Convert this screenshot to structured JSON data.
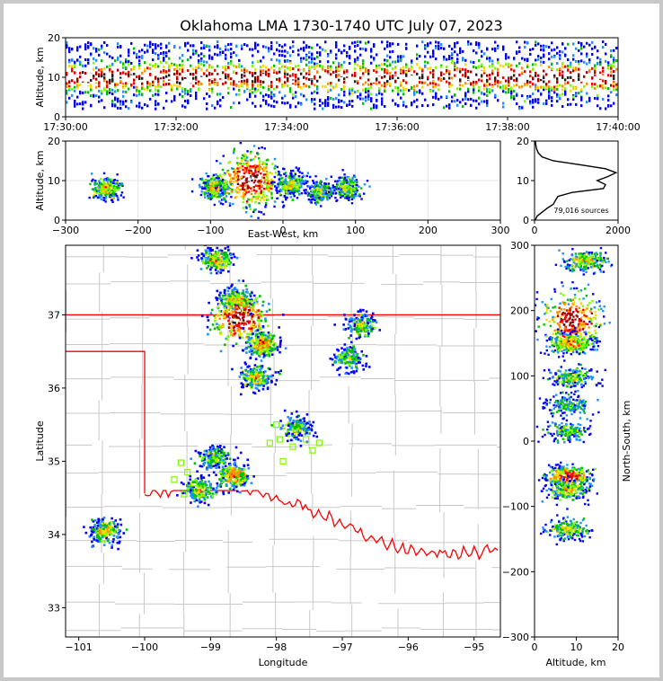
{
  "title": "Oklahoma LMA 1730-1740 UTC July 07, 2023",
  "source_count_label": "79,016 sources",
  "colors": {
    "border_red": "#ff0000",
    "county_lines": "#c8c8c8",
    "station_marker": "#7cfc00",
    "palette": [
      "#0000ff",
      "#1e90ff",
      "#00c000",
      "#7cfc00",
      "#ffd700",
      "#ff8c00",
      "#ff0000",
      "#b00000",
      "#ffffff",
      "#202020"
    ]
  },
  "chart_data": [
    {
      "panel": "altitude-time",
      "type": "heatmap",
      "ylabel": "Altitude, km",
      "xlim": [
        "17:30:00",
        "17:40:00"
      ],
      "ylim": [
        0,
        20
      ],
      "xticks": [
        "17:30:00",
        "17:32:00",
        "17:34:00",
        "17:36:00",
        "17:38:00",
        "17:40:00"
      ],
      "yticks": [
        "0",
        "10",
        "20"
      ]
    },
    {
      "panel": "altitude-eastwest",
      "type": "heatmap",
      "xlabel": "East-West, km",
      "ylabel": "Altitude, km",
      "xlim": [
        -300,
        300
      ],
      "ylim": [
        0,
        20
      ],
      "xticks": [
        "−300",
        "−200",
        "−100",
        "0",
        "100",
        "200",
        "300"
      ],
      "yticks": [
        "0",
        "10",
        "20"
      ],
      "clusters": [
        {
          "x": -245,
          "alt": 8,
          "density": 0.55
        },
        {
          "x": -95,
          "alt": 8,
          "density": 0.6
        },
        {
          "x": -45,
          "alt": 10,
          "density": 1.0
        },
        {
          "x": 12,
          "alt": 9,
          "density": 0.55
        },
        {
          "x": 52,
          "alt": 7,
          "density": 0.4
        },
        {
          "x": 90,
          "alt": 8,
          "density": 0.45
        }
      ]
    },
    {
      "panel": "source-histogram",
      "type": "line",
      "xlim": [
        0,
        2000
      ],
      "ylim": [
        0,
        20
      ],
      "xticks": [
        "0",
        "2000"
      ],
      "yticks": [
        "0",
        "10",
        "20"
      ],
      "altitude_km": [
        0,
        1,
        2,
        3,
        4,
        5,
        6,
        7,
        8,
        9,
        10,
        11,
        12,
        13,
        14,
        15,
        16,
        17,
        18,
        19,
        20
      ],
      "sources": [
        20,
        60,
        180,
        300,
        450,
        500,
        560,
        900,
        1650,
        1700,
        1500,
        1750,
        1950,
        1700,
        1100,
        450,
        180,
        90,
        50,
        30,
        20
      ]
    },
    {
      "panel": "plan-view",
      "type": "scatter",
      "xlabel": "Longitude",
      "ylabel": "Latitude",
      "xlim": [
        -101.2,
        -94.6
      ],
      "ylim": [
        32.6,
        37.95
      ],
      "xticks": [
        "−101",
        "−100",
        "−99",
        "−98",
        "−97",
        "−96",
        "−95"
      ],
      "yticks": [
        "33",
        "34",
        "35",
        "36",
        "37"
      ],
      "clusters": [
        {
          "lon": -98.9,
          "lat": 37.75,
          "density": 0.6
        },
        {
          "lon": -98.6,
          "lat": 37.2,
          "density": 0.6
        },
        {
          "lon": -98.55,
          "lat": 36.95,
          "density": 1.0
        },
        {
          "lon": -98.2,
          "lat": 36.6,
          "density": 0.7
        },
        {
          "lon": -98.3,
          "lat": 36.15,
          "density": 0.5
        },
        {
          "lon": -97.7,
          "lat": 35.45,
          "density": 0.4
        },
        {
          "lon": -96.7,
          "lat": 36.85,
          "density": 0.4
        },
        {
          "lon": -96.9,
          "lat": 36.4,
          "density": 0.4
        },
        {
          "lon": -98.95,
          "lat": 35.05,
          "density": 0.4
        },
        {
          "lon": -98.65,
          "lat": 34.8,
          "density": 0.7
        },
        {
          "lon": -99.15,
          "lat": 34.6,
          "density": 0.55
        },
        {
          "lon": -100.6,
          "lat": 34.05,
          "density": 0.6
        }
      ],
      "stations": [
        {
          "lon": -98.0,
          "lat": 35.5
        },
        {
          "lon": -98.1,
          "lat": 35.25
        },
        {
          "lon": -97.95,
          "lat": 35.3
        },
        {
          "lon": -97.75,
          "lat": 35.2
        },
        {
          "lon": -97.55,
          "lat": 35.3
        },
        {
          "lon": -97.35,
          "lat": 35.25
        },
        {
          "lon": -97.45,
          "lat": 35.15
        },
        {
          "lon": -97.9,
          "lat": 35.0
        },
        {
          "lon": -99.45,
          "lat": 34.98
        },
        {
          "lon": -99.35,
          "lat": 34.85
        },
        {
          "lon": -99.55,
          "lat": 34.75
        },
        {
          "lon": -99.25,
          "lat": 34.7
        },
        {
          "lon": -99.4,
          "lat": 34.55
        }
      ]
    },
    {
      "panel": "northsouth-altitude",
      "type": "heatmap",
      "xlabel": "Altitude, km",
      "ylabel": "North-South, km",
      "xlim": [
        0,
        20
      ],
      "ylim": [
        -300,
        300
      ],
      "xticks": [
        "0",
        "10",
        "20"
      ],
      "yticks": [
        "−300",
        "−200",
        "−100",
        "0",
        "100",
        "200",
        "300"
      ],
      "clusters": [
        {
          "ns": 275,
          "alt": 12,
          "density": 0.55
        },
        {
          "ns": 185,
          "alt": 9,
          "density": 1.0
        },
        {
          "ns": 150,
          "alt": 9,
          "density": 0.7
        },
        {
          "ns": 97,
          "alt": 9,
          "density": 0.4
        },
        {
          "ns": 55,
          "alt": 8,
          "density": 0.35
        },
        {
          "ns": 15,
          "alt": 8,
          "density": 0.35
        },
        {
          "ns": -55,
          "alt": 8,
          "density": 0.9
        },
        {
          "ns": -75,
          "alt": 8,
          "density": 0.55
        },
        {
          "ns": -135,
          "alt": 8,
          "density": 0.5
        }
      ]
    }
  ]
}
